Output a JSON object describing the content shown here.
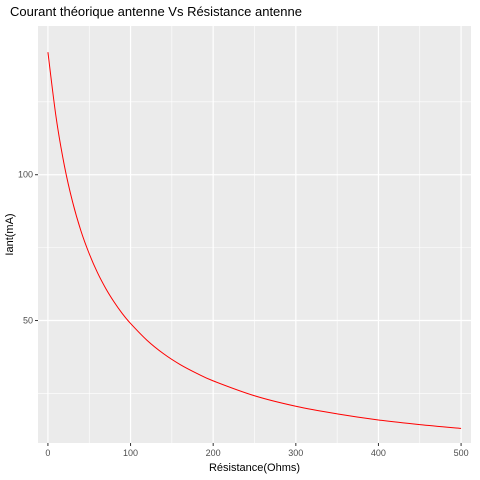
{
  "chart_data": {
    "type": "line",
    "title": "Courant théorique antenne Vs Résistance antenne",
    "xlabel": "Résistance(Ohms)",
    "ylabel": "Iant(mA)",
    "xlim": [
      -12,
      512
    ],
    "ylim": [
      8,
      151
    ],
    "x_ticks": [
      0,
      100,
      200,
      300,
      400,
      500
    ],
    "y_ticks": [
      50,
      100
    ],
    "grid": true,
    "legend": "none",
    "background": "#EBEBEB",
    "grid_color": "#FFFFFF",
    "series": [
      {
        "color": "#FF0000",
        "x": [
          0,
          10,
          20,
          30,
          40,
          50,
          60,
          70,
          80,
          90,
          100,
          120,
          140,
          160,
          180,
          200,
          250,
          300,
          350,
          400,
          450,
          500
        ],
        "y": [
          142,
          119.5,
          103,
          90.5,
          80.7,
          72.9,
          66.4,
          61.0,
          56.4,
          52.4,
          49.0,
          43.2,
          38.6,
          34.9,
          31.9,
          29.3,
          24.2,
          20.6,
          18.0,
          15.9,
          14.3,
          13.0
        ]
      }
    ]
  }
}
